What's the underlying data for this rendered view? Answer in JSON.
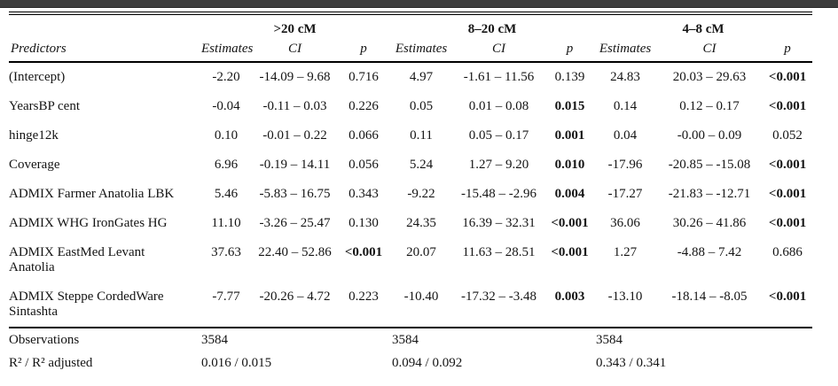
{
  "page": {
    "top_bar_color": "#3c3c3c",
    "background_color": "#ffffff",
    "text_color": "#141414"
  },
  "table": {
    "groups": [
      {
        "label": ">20 cM"
      },
      {
        "label": "8–20 cM"
      },
      {
        "label": "4–8 cM"
      }
    ],
    "column_headers": {
      "predictor": "Predictors",
      "estimates": "Estimates",
      "ci": "CI",
      "p": "p"
    },
    "rows": [
      {
        "predictor": "(Intercept)",
        "cells": [
          {
            "est": "-2.20",
            "ci": "-14.09 – 9.68",
            "p": "0.716",
            "p_bold": false
          },
          {
            "est": "4.97",
            "ci": "-1.61 – 11.56",
            "p": "0.139",
            "p_bold": false
          },
          {
            "est": "24.83",
            "ci": "20.03 – 29.63",
            "p": "<0.001",
            "p_bold": true
          }
        ]
      },
      {
        "predictor": "YearsBP cent",
        "cells": [
          {
            "est": "-0.04",
            "ci": "-0.11 – 0.03",
            "p": "0.226",
            "p_bold": false
          },
          {
            "est": "0.05",
            "ci": "0.01 – 0.08",
            "p": "0.015",
            "p_bold": true
          },
          {
            "est": "0.14",
            "ci": "0.12 – 0.17",
            "p": "<0.001",
            "p_bold": true
          }
        ]
      },
      {
        "predictor": "hinge12k",
        "cells": [
          {
            "est": "0.10",
            "ci": "-0.01 – 0.22",
            "p": "0.066",
            "p_bold": false
          },
          {
            "est": "0.11",
            "ci": "0.05 – 0.17",
            "p": "0.001",
            "p_bold": true
          },
          {
            "est": "0.04",
            "ci": "-0.00 – 0.09",
            "p": "0.052",
            "p_bold": false
          }
        ]
      },
      {
        "predictor": "Coverage",
        "cells": [
          {
            "est": "6.96",
            "ci": "-0.19 – 14.11",
            "p": "0.056",
            "p_bold": false
          },
          {
            "est": "5.24",
            "ci": "1.27 – 9.20",
            "p": "0.010",
            "p_bold": true
          },
          {
            "est": "-17.96",
            "ci": "-20.85 – -15.08",
            "p": "<0.001",
            "p_bold": true
          }
        ]
      },
      {
        "predictor": "ADMIX Farmer Anatolia LBK",
        "cells": [
          {
            "est": "5.46",
            "ci": "-5.83 – 16.75",
            "p": "0.343",
            "p_bold": false
          },
          {
            "est": "-9.22",
            "ci": "-15.48 – -2.96",
            "p": "0.004",
            "p_bold": true
          },
          {
            "est": "-17.27",
            "ci": "-21.83 – -12.71",
            "p": "<0.001",
            "p_bold": true
          }
        ]
      },
      {
        "predictor": "ADMIX WHG IronGates HG",
        "cells": [
          {
            "est": "11.10",
            "ci": "-3.26 – 25.47",
            "p": "0.130",
            "p_bold": false
          },
          {
            "est": "24.35",
            "ci": "16.39 – 32.31",
            "p": "<0.001",
            "p_bold": true
          },
          {
            "est": "36.06",
            "ci": "30.26 – 41.86",
            "p": "<0.001",
            "p_bold": true
          }
        ]
      },
      {
        "predictor": "ADMIX EastMed Levant\nAnatolia",
        "cells": [
          {
            "est": "37.63",
            "ci": "22.40 – 52.86",
            "p": "<0.001",
            "p_bold": true
          },
          {
            "est": "20.07",
            "ci": "11.63 – 28.51",
            "p": "<0.001",
            "p_bold": true
          },
          {
            "est": "1.27",
            "ci": "-4.88 – 7.42",
            "p": "0.686",
            "p_bold": false
          }
        ]
      },
      {
        "predictor": "ADMIX Steppe CordedWare\nSintashta",
        "cells": [
          {
            "est": "-7.77",
            "ci": "-20.26 – 4.72",
            "p": "0.223",
            "p_bold": false
          },
          {
            "est": "-10.40",
            "ci": "-17.32 – -3.48",
            "p": "0.003",
            "p_bold": true
          },
          {
            "est": "-13.10",
            "ci": "-18.14 – -8.05",
            "p": "<0.001",
            "p_bold": true
          }
        ]
      }
    ],
    "footer_rows": [
      {
        "label": "Observations",
        "values": [
          "3584",
          "3584",
          "3584"
        ]
      },
      {
        "label": "R² / R² adjusted",
        "values": [
          "0.016 / 0.015",
          "0.094 / 0.092",
          "0.343 / 0.341"
        ]
      }
    ]
  }
}
